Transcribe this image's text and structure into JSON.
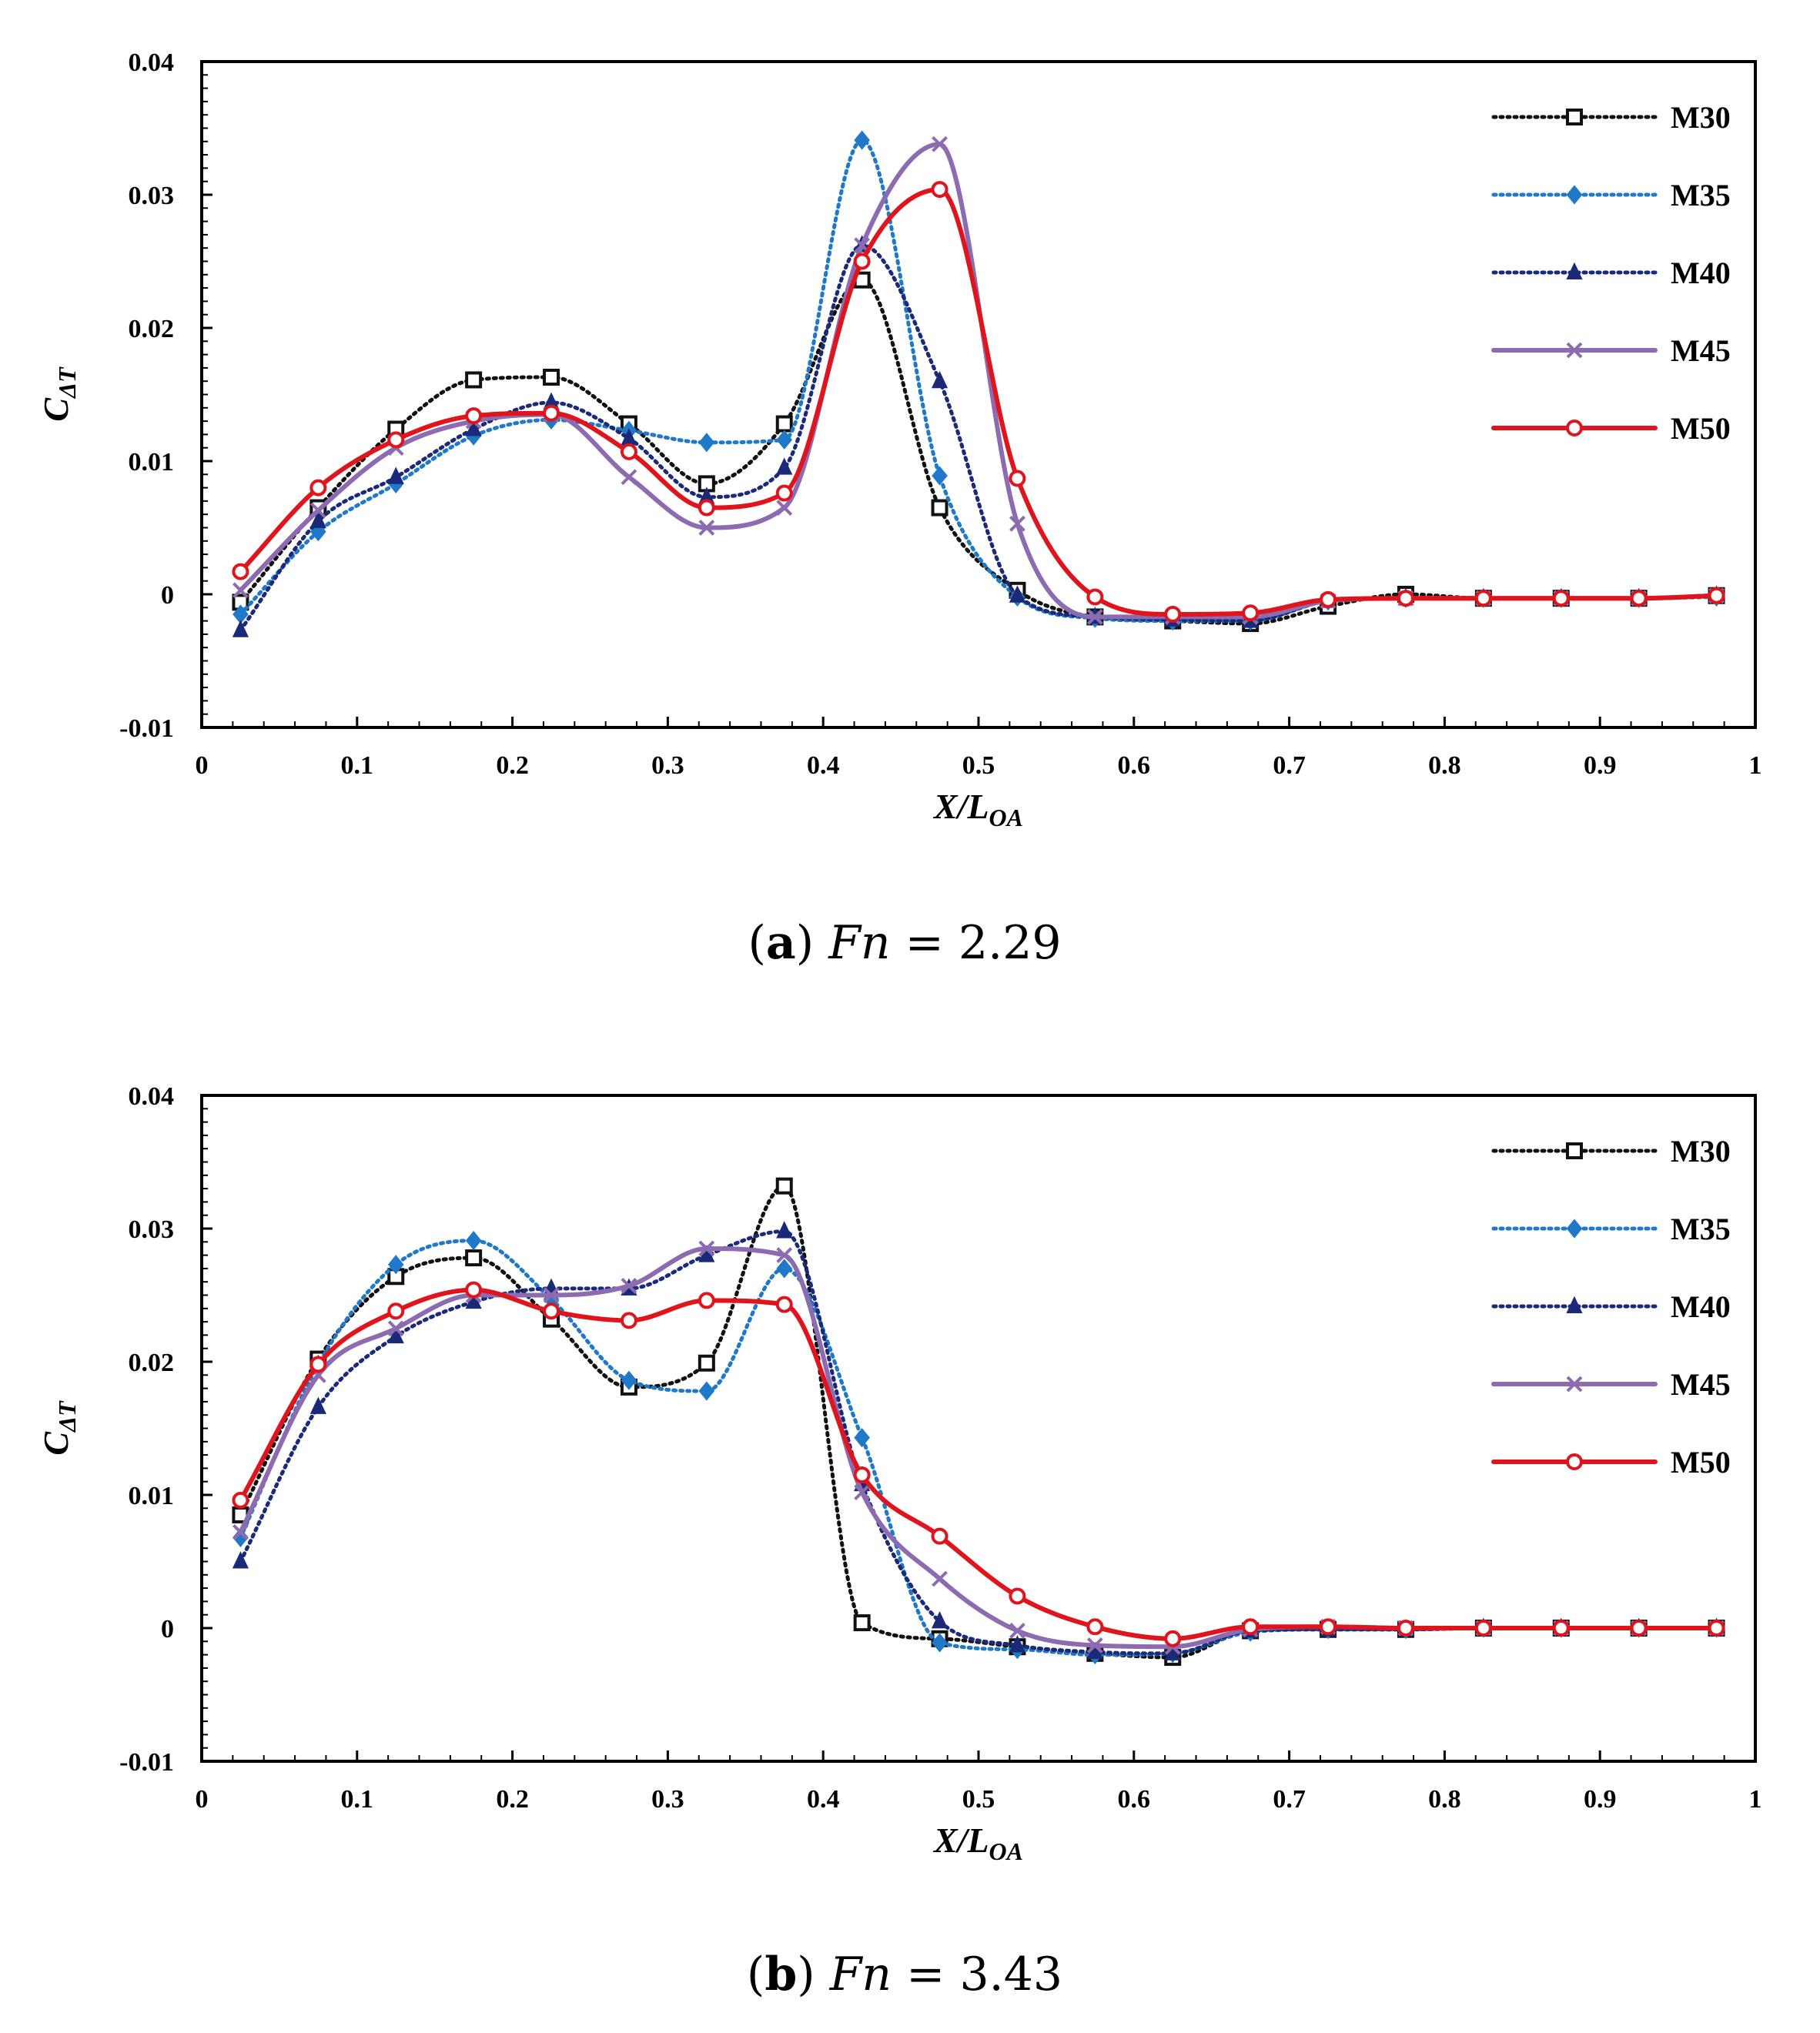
{
  "colors": {
    "M30": "#111111",
    "M35": "#1f78c8",
    "M40": "#1a2a78",
    "M45": "#8d6bb1",
    "M50": "#e0141c"
  },
  "legend": {
    "labels": [
      "M30",
      "M35",
      "M40",
      "M45",
      "M50"
    ]
  },
  "panels": [
    {
      "caption": {
        "letter": "a",
        "open": "(",
        "close": ")",
        "symbol": "Fn",
        "equals": "=",
        "value": "2.29"
      },
      "ylabel": {
        "main": "C",
        "sub": "ΔT"
      },
      "xlabel": {
        "main": "X/L",
        "sub": "OA"
      }
    },
    {
      "caption": {
        "letter": "b",
        "open": "(",
        "close": ")",
        "symbol": "Fn",
        "equals": "=",
        "value": "3.43"
      },
      "ylabel": {
        "main": "C",
        "sub": "ΔT"
      },
      "xlabel": {
        "main": "X/L",
        "sub": "OA"
      }
    }
  ],
  "chart_data": [
    {
      "type": "line",
      "title": "(a) Fn = 2.29",
      "xlabel": "X/LOA",
      "ylabel": "CΔT",
      "xlim": [
        0,
        1
      ],
      "ylim": [
        -0.01,
        0.04
      ],
      "xticks": [
        "0",
        "0.1",
        "0.2",
        "0.3",
        "0.4",
        "0.5",
        "0.6",
        "0.7",
        "0.8",
        "0.9",
        "1"
      ],
      "yticks": [
        "-0.01",
        "0",
        "0.01",
        "0.02",
        "0.03",
        "0.04"
      ],
      "legend_position": "top-right",
      "x": [
        0.025,
        0.075,
        0.125,
        0.175,
        0.225,
        0.275,
        0.325,
        0.375,
        0.425,
        0.475,
        0.525,
        0.575,
        0.625,
        0.675,
        0.725,
        0.775,
        0.825,
        0.875,
        0.925,
        0.975
      ],
      "series": [
        {
          "name": "M30",
          "style": "dotted",
          "marker": "square",
          "values": [
            -0.0006,
            0.0065,
            0.0124,
            0.0161,
            0.0163,
            0.0128,
            0.0083,
            0.0128,
            0.0236,
            0.0065,
            0.0003,
            -0.0017,
            -0.002,
            -0.0022,
            -0.0009,
            0.0,
            -0.0003,
            -0.0003,
            -0.0003,
            -0.0001
          ]
        },
        {
          "name": "M35",
          "style": "dotted",
          "marker": "diamond",
          "values": [
            -0.0015,
            0.0047,
            0.0083,
            0.0119,
            0.0131,
            0.0123,
            0.0114,
            0.0116,
            0.0341,
            0.0089,
            -0.0002,
            -0.0018,
            -0.002,
            -0.002,
            -0.0005,
            -0.0003,
            -0.0003,
            -0.0003,
            -0.0003,
            -0.0002
          ]
        },
        {
          "name": "M40",
          "style": "dotted",
          "marker": "triangle",
          "values": [
            -0.0027,
            0.0055,
            0.0088,
            0.0124,
            0.0144,
            0.0117,
            0.0073,
            0.0095,
            0.0262,
            0.016,
            -0.0001,
            -0.0017,
            -0.0019,
            -0.002,
            -0.0005,
            -0.0003,
            -0.0003,
            -0.0003,
            -0.0003,
            -0.0001
          ]
        },
        {
          "name": "M45",
          "style": "solid",
          "marker": "x",
          "values": [
            0.0003,
            0.0063,
            0.011,
            0.013,
            0.0135,
            0.0088,
            0.005,
            0.0065,
            0.0262,
            0.0338,
            0.0053,
            -0.0017,
            -0.0017,
            -0.0017,
            -0.0005,
            -0.0003,
            -0.0003,
            -0.0003,
            -0.0003,
            -0.0001
          ]
        },
        {
          "name": "M50",
          "style": "solid",
          "marker": "circle",
          "values": [
            0.0017,
            0.008,
            0.0116,
            0.0134,
            0.0136,
            0.0107,
            0.0065,
            0.0076,
            0.025,
            0.0304,
            0.0087,
            -0.0002,
            -0.0015,
            -0.0014,
            -0.0004,
            -0.0003,
            -0.0003,
            -0.0003,
            -0.0003,
            -0.0001
          ]
        }
      ]
    },
    {
      "type": "line",
      "title": "(b) Fn = 3.43",
      "xlabel": "X/LOA",
      "ylabel": "CΔT",
      "xlim": [
        0,
        1
      ],
      "ylim": [
        -0.01,
        0.04
      ],
      "xticks": [
        "0",
        "0.1",
        "0.2",
        "0.3",
        "0.4",
        "0.5",
        "0.6",
        "0.7",
        "0.8",
        "0.9",
        "1"
      ],
      "yticks": [
        "-0.01",
        "0",
        "0.01",
        "0.02",
        "0.03",
        "0.04"
      ],
      "legend_position": "top-right",
      "x": [
        0.025,
        0.075,
        0.125,
        0.175,
        0.225,
        0.275,
        0.325,
        0.375,
        0.425,
        0.475,
        0.525,
        0.575,
        0.625,
        0.675,
        0.725,
        0.775,
        0.825,
        0.875,
        0.925,
        0.975
      ],
      "series": [
        {
          "name": "M30",
          "style": "dotted",
          "marker": "square",
          "values": [
            0.0085,
            0.0202,
            0.0264,
            0.0278,
            0.0232,
            0.0181,
            0.0199,
            0.0332,
            0.0004,
            -0.0008,
            -0.0014,
            -0.0019,
            -0.0022,
            -0.0002,
            -0.0001,
            -0.0001,
            0.0,
            0.0,
            0.0,
            0.0
          ]
        },
        {
          "name": "M35",
          "style": "dotted",
          "marker": "diamond",
          "values": [
            0.0068,
            0.0198,
            0.0273,
            0.0291,
            0.0247,
            0.0186,
            0.0178,
            0.027,
            0.0143,
            -0.0011,
            -0.0016,
            -0.002,
            -0.0019,
            -0.0003,
            -0.0001,
            -0.0001,
            0.0,
            0.0,
            0.0,
            0.0
          ]
        },
        {
          "name": "M40",
          "style": "dotted",
          "marker": "triangle",
          "values": [
            0.005,
            0.0166,
            0.0219,
            0.0245,
            0.0255,
            0.0255,
            0.028,
            0.0298,
            0.0108,
            0.0005,
            -0.0013,
            -0.0018,
            -0.0019,
            -0.0002,
            -0.0001,
            -0.0001,
            0.0,
            0.0,
            0.0,
            0.0
          ]
        },
        {
          "name": "M45",
          "style": "solid",
          "marker": "x",
          "values": [
            0.0072,
            0.019,
            0.0225,
            0.025,
            0.025,
            0.0257,
            0.0285,
            0.028,
            0.0102,
            0.0037,
            -0.0002,
            -0.0013,
            -0.0014,
            -0.0001,
            0.0001,
            0.0,
            0.0,
            0.0,
            0.0,
            0.0
          ]
        },
        {
          "name": "M50",
          "style": "solid",
          "marker": "circle",
          "values": [
            0.0096,
            0.0198,
            0.0238,
            0.0254,
            0.0238,
            0.0231,
            0.0246,
            0.0243,
            0.0115,
            0.0069,
            0.0024,
            0.0001,
            -0.0008,
            0.0001,
            0.0001,
            0.0,
            0.0,
            0.0,
            0.0,
            0.0
          ]
        }
      ]
    }
  ]
}
